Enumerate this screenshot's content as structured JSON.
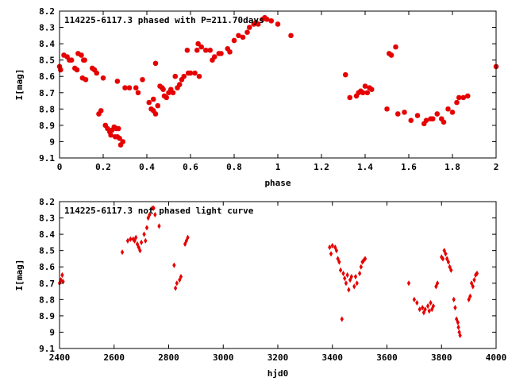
{
  "colors": {
    "series": "#e60000",
    "axis": "#000000",
    "background": "#ffffff"
  },
  "chart_data": [
    {
      "type": "scatter",
      "title": "114225-6117.3 phased with P=211.70days",
      "xlabel": "phase",
      "ylabel": "I[mag]",
      "xlim": [
        0,
        2
      ],
      "ylim": [
        8.2,
        9.1
      ],
      "y_inverted": true,
      "grid": false,
      "marker": "asterisk",
      "xticks": [
        "0",
        "0.2",
        "0.4",
        "0.6",
        "0.8",
        "1",
        "1.2",
        "1.4",
        "1.6",
        "1.8",
        "2"
      ],
      "xtick_values": [
        0,
        0.2,
        0.4,
        0.6,
        0.8,
        1.0,
        1.2,
        1.4,
        1.6,
        1.8,
        2.0
      ],
      "yticks": [
        "8.2",
        "8.3",
        "8.4",
        "8.5",
        "8.6",
        "8.7",
        "8.8",
        "8.9",
        "9",
        "9.1"
      ],
      "ytick_values": [
        8.2,
        8.3,
        8.4,
        8.5,
        8.6,
        8.7,
        8.8,
        8.9,
        9.0,
        9.1
      ],
      "points": [
        [
          0.0,
          8.54
        ],
        [
          0.005,
          8.56
        ],
        [
          0.02,
          8.47
        ],
        [
          0.035,
          8.48
        ],
        [
          0.045,
          8.5
        ],
        [
          0.055,
          8.5
        ],
        [
          0.07,
          8.55
        ],
        [
          0.08,
          8.56
        ],
        [
          0.085,
          8.46
        ],
        [
          0.1,
          8.47
        ],
        [
          0.105,
          8.61
        ],
        [
          0.11,
          8.5
        ],
        [
          0.115,
          8.5
        ],
        [
          0.12,
          8.62
        ],
        [
          0.15,
          8.55
        ],
        [
          0.16,
          8.56
        ],
        [
          0.17,
          8.58
        ],
        [
          0.18,
          8.83
        ],
        [
          0.19,
          8.81
        ],
        [
          0.2,
          8.61
        ],
        [
          0.21,
          8.9
        ],
        [
          0.22,
          8.92
        ],
        [
          0.23,
          8.94
        ],
        [
          0.24,
          8.93
        ],
        [
          0.25,
          8.91
        ],
        [
          0.255,
          8.97
        ],
        [
          0.265,
          8.97
        ],
        [
          0.27,
          8.92
        ],
        [
          0.275,
          8.98
        ],
        [
          0.28,
          9.02
        ],
        [
          0.29,
          9.0
        ],
        [
          0.26,
          8.92
        ],
        [
          0.235,
          8.96
        ],
        [
          0.265,
          8.63
        ],
        [
          0.3,
          8.67
        ],
        [
          0.32,
          8.67
        ],
        [
          0.35,
          8.67
        ],
        [
          0.36,
          8.7
        ],
        [
          0.38,
          8.62
        ],
        [
          0.41,
          8.76
        ],
        [
          0.42,
          8.8
        ],
        [
          0.43,
          8.74
        ],
        [
          0.43,
          8.81
        ],
        [
          0.44,
          8.83
        ],
        [
          0.44,
          8.52
        ],
        [
          0.45,
          8.78
        ],
        [
          0.46,
          8.66
        ],
        [
          0.47,
          8.67
        ],
        [
          0.475,
          8.68
        ],
        [
          0.48,
          8.72
        ],
        [
          0.49,
          8.73
        ],
        [
          0.5,
          8.7
        ],
        [
          0.51,
          8.68
        ],
        [
          0.52,
          8.7
        ],
        [
          0.53,
          8.6
        ],
        [
          0.54,
          8.67
        ],
        [
          0.55,
          8.65
        ],
        [
          0.56,
          8.62
        ],
        [
          0.57,
          8.6
        ],
        [
          0.585,
          8.44
        ],
        [
          0.59,
          8.58
        ],
        [
          0.6,
          8.58
        ],
        [
          0.62,
          8.58
        ],
        [
          0.63,
          8.44
        ],
        [
          0.635,
          8.4
        ],
        [
          0.64,
          8.6
        ],
        [
          0.65,
          8.42
        ],
        [
          0.67,
          8.44
        ],
        [
          0.69,
          8.44
        ],
        [
          0.7,
          8.5
        ],
        [
          0.71,
          8.48
        ],
        [
          0.73,
          8.46
        ],
        [
          0.74,
          8.46
        ],
        [
          0.77,
          8.43
        ],
        [
          0.78,
          8.45
        ],
        [
          0.8,
          8.38
        ],
        [
          0.82,
          8.35
        ],
        [
          0.84,
          8.36
        ],
        [
          0.86,
          8.33
        ],
        [
          0.87,
          8.3
        ],
        [
          0.89,
          8.28
        ],
        [
          0.9,
          8.27
        ],
        [
          0.91,
          8.28
        ],
        [
          0.93,
          8.25
        ],
        [
          0.94,
          8.24
        ],
        [
          0.95,
          8.25
        ],
        [
          0.97,
          8.26
        ],
        [
          1.0,
          8.28
        ],
        [
          1.06,
          8.35
        ],
        [
          1.31,
          8.59
        ],
        [
          1.33,
          8.73
        ],
        [
          1.36,
          8.72
        ],
        [
          1.37,
          8.7
        ],
        [
          1.38,
          8.69
        ],
        [
          1.39,
          8.7
        ],
        [
          1.4,
          8.66
        ],
        [
          1.41,
          8.7
        ],
        [
          1.42,
          8.67
        ],
        [
          1.43,
          8.68
        ],
        [
          1.5,
          8.8
        ],
        [
          1.51,
          8.46
        ],
        [
          1.52,
          8.47
        ],
        [
          1.54,
          8.42
        ],
        [
          1.55,
          8.83
        ],
        [
          1.58,
          8.82
        ],
        [
          1.61,
          8.87
        ],
        [
          1.64,
          8.84
        ],
        [
          1.67,
          8.89
        ],
        [
          1.68,
          8.87
        ],
        [
          1.7,
          8.86
        ],
        [
          1.71,
          8.86
        ],
        [
          1.73,
          8.83
        ],
        [
          1.75,
          8.86
        ],
        [
          1.76,
          8.88
        ],
        [
          1.78,
          8.8
        ],
        [
          1.8,
          8.82
        ],
        [
          1.82,
          8.76
        ],
        [
          1.83,
          8.73
        ],
        [
          1.85,
          8.73
        ],
        [
          1.87,
          8.72
        ],
        [
          2.0,
          8.54
        ]
      ]
    },
    {
      "type": "scatter",
      "title": "114225-6117.3 not phased light curve",
      "xlabel": "hjd0",
      "ylabel": "I[mag]",
      "xlim": [
        2400,
        4000
      ],
      "ylim": [
        8.2,
        9.1
      ],
      "y_inverted": true,
      "grid": false,
      "marker": "diamond",
      "xticks": [
        "2400",
        "2600",
        "2800",
        "3000",
        "3200",
        "3400",
        "3600",
        "3800",
        "4000"
      ],
      "xtick_values": [
        2400,
        2600,
        2800,
        3000,
        3200,
        3400,
        3600,
        3800,
        4000
      ],
      "yticks": [
        "8.2",
        "8.3",
        "8.4",
        "8.5",
        "8.6",
        "8.7",
        "8.8",
        "8.9",
        "9",
        "9.1"
      ],
      "ytick_values": [
        8.2,
        8.3,
        8.4,
        8.5,
        8.6,
        8.7,
        8.8,
        8.9,
        9.0,
        9.1
      ],
      "points": [
        [
          2400,
          8.7
        ],
        [
          2405,
          8.68
        ],
        [
          2410,
          8.65
        ],
        [
          2413,
          8.69
        ],
        [
          2630,
          8.51
        ],
        [
          2650,
          8.44
        ],
        [
          2660,
          8.43
        ],
        [
          2670,
          8.43
        ],
        [
          2675,
          8.44
        ],
        [
          2680,
          8.42
        ],
        [
          2685,
          8.46
        ],
        [
          2690,
          8.48
        ],
        [
          2695,
          8.5
        ],
        [
          2700,
          8.45
        ],
        [
          2710,
          8.4
        ],
        [
          2715,
          8.44
        ],
        [
          2720,
          8.36
        ],
        [
          2725,
          8.3
        ],
        [
          2730,
          8.28
        ],
        [
          2740,
          8.24
        ],
        [
          2745,
          8.24
        ],
        [
          2750,
          8.28
        ],
        [
          2765,
          8.35
        ],
        [
          2820,
          8.59
        ],
        [
          2825,
          8.73
        ],
        [
          2830,
          8.7
        ],
        [
          2840,
          8.68
        ],
        [
          2845,
          8.66
        ],
        [
          2860,
          8.46
        ],
        [
          2865,
          8.44
        ],
        [
          2870,
          8.42
        ],
        [
          3390,
          8.48
        ],
        [
          3395,
          8.52
        ],
        [
          3400,
          8.47
        ],
        [
          3410,
          8.48
        ],
        [
          3415,
          8.5
        ],
        [
          3420,
          8.55
        ],
        [
          3425,
          8.57
        ],
        [
          3430,
          8.62
        ],
        [
          3435,
          8.92
        ],
        [
          3440,
          8.64
        ],
        [
          3445,
          8.67
        ],
        [
          3450,
          8.7
        ],
        [
          3455,
          8.65
        ],
        [
          3460,
          8.74
        ],
        [
          3465,
          8.68
        ],
        [
          3470,
          8.66
        ],
        [
          3480,
          8.72
        ],
        [
          3485,
          8.66
        ],
        [
          3490,
          8.7
        ],
        [
          3500,
          8.64
        ],
        [
          3505,
          8.6
        ],
        [
          3510,
          8.57
        ],
        [
          3515,
          8.56
        ],
        [
          3520,
          8.55
        ],
        [
          3680,
          8.7
        ],
        [
          3700,
          8.8
        ],
        [
          3710,
          8.82
        ],
        [
          3720,
          8.86
        ],
        [
          3730,
          8.85
        ],
        [
          3735,
          8.88
        ],
        [
          3740,
          8.86
        ],
        [
          3750,
          8.84
        ],
        [
          3755,
          8.87
        ],
        [
          3760,
          8.82
        ],
        [
          3765,
          8.86
        ],
        [
          3770,
          8.84
        ],
        [
          3780,
          8.72
        ],
        [
          3785,
          8.7
        ],
        [
          3800,
          8.54
        ],
        [
          3805,
          8.55
        ],
        [
          3810,
          8.5
        ],
        [
          3815,
          8.52
        ],
        [
          3820,
          8.55
        ],
        [
          3825,
          8.57
        ],
        [
          3830,
          8.6
        ],
        [
          3835,
          8.62
        ],
        [
          3845,
          8.8
        ],
        [
          3850,
          8.85
        ],
        [
          3855,
          8.92
        ],
        [
          3860,
          8.94
        ],
        [
          3862,
          8.97
        ],
        [
          3865,
          9.0
        ],
        [
          3868,
          9.02
        ],
        [
          3900,
          8.8
        ],
        [
          3905,
          8.78
        ],
        [
          3910,
          8.7
        ],
        [
          3915,
          8.72
        ],
        [
          3920,
          8.68
        ],
        [
          3925,
          8.65
        ],
        [
          3930,
          8.64
        ]
      ]
    }
  ]
}
